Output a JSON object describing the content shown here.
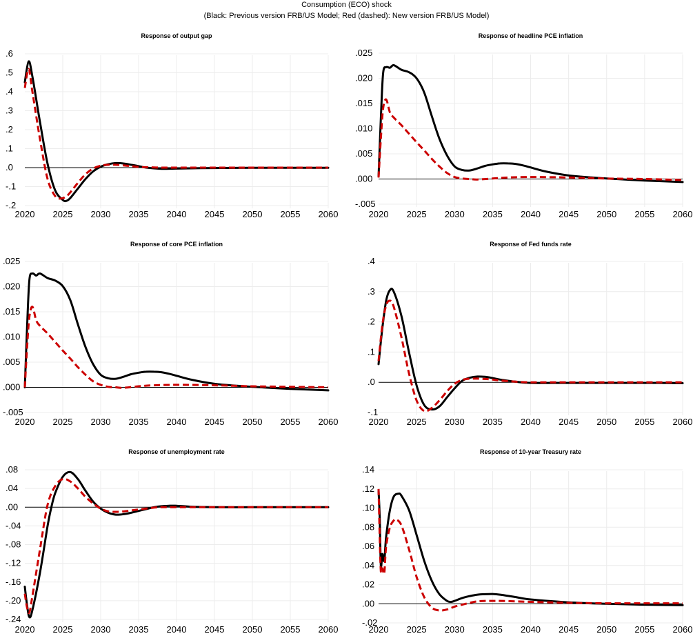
{
  "header": {
    "title": "Consumption (ECO) shock",
    "subtitle": "(Black: Previous version FRB/US Model; Red (dashed): New version FRB/US Model)"
  },
  "legend": {
    "previous": {
      "name": "Previous version FRB/US Model",
      "color": "#000000",
      "style": "solid"
    },
    "new": {
      "name": "New version FRB/US Model",
      "color": "#cc0000",
      "style": "dashed"
    }
  },
  "chart_data": [
    {
      "type": "line",
      "title": "Response of output gap",
      "xlabel": "",
      "ylabel": "",
      "xlim": [
        2020,
        2060
      ],
      "ylim": [
        -0.2,
        0.6
      ],
      "xticks": [
        2020,
        2025,
        2030,
        2035,
        2040,
        2045,
        2050,
        2055,
        2060
      ],
      "xtick_labels": [
        "2020",
        "2025",
        "2030",
        "2035",
        "2040",
        "2045",
        "2050",
        "2055",
        "2060"
      ],
      "yticks": [
        0.6,
        0.5,
        0.4,
        0.3,
        0.2,
        0.1,
        0.0,
        -0.1,
        -0.2
      ],
      "ytick_labels": [
        ".6",
        ".5",
        ".4",
        ".3",
        ".2",
        ".1",
        ".0",
        "-.1",
        "-.2"
      ],
      "grid": true,
      "series": [
        {
          "name": "Previous version FRB/US Model",
          "x": [
            2020,
            2020.5,
            2021,
            2022,
            2023,
            2024,
            2025,
            2025.5,
            2026,
            2027,
            2028,
            2029,
            2030,
            2031,
            2032,
            2033,
            2034,
            2035,
            2036,
            2038,
            2040,
            2045,
            2050,
            2055,
            2060
          ],
          "values": [
            0.45,
            0.56,
            0.48,
            0.24,
            0.02,
            -0.12,
            -0.17,
            -0.175,
            -0.16,
            -0.11,
            -0.06,
            -0.02,
            0.005,
            0.018,
            0.024,
            0.022,
            0.015,
            0.008,
            0.0,
            -0.006,
            -0.005,
            -0.002,
            -0.001,
            -0.001,
            -0.001
          ]
        },
        {
          "name": "New version FRB/US Model",
          "x": [
            2020,
            2020.5,
            2021,
            2022,
            2023,
            2024,
            2024.8,
            2025.5,
            2026,
            2027,
            2028,
            2029,
            2030,
            2031,
            2032,
            2033,
            2034,
            2035,
            2036,
            2038,
            2040,
            2045,
            2050,
            2055,
            2060
          ],
          "values": [
            0.42,
            0.52,
            0.4,
            0.15,
            -0.06,
            -0.15,
            -0.163,
            -0.15,
            -0.13,
            -0.08,
            -0.035,
            -0.005,
            0.01,
            0.015,
            0.015,
            0.012,
            0.008,
            0.004,
            0.002,
            0.0,
            0.0,
            0.0,
            0.0,
            0.0,
            0.0
          ]
        }
      ]
    },
    {
      "type": "line",
      "title": "Response of headline PCE inflation",
      "xlabel": "",
      "ylabel": "",
      "xlim": [
        2020,
        2060
      ],
      "ylim": [
        -0.005,
        0.025
      ],
      "xticks": [
        2020,
        2025,
        2030,
        2035,
        2040,
        2045,
        2050,
        2055,
        2060
      ],
      "xtick_labels": [
        "2020",
        "2025",
        "2030",
        "2035",
        "2040",
        "2045",
        "2050",
        "2055",
        "2060"
      ],
      "yticks": [
        0.025,
        0.02,
        0.015,
        0.01,
        0.005,
        0.0,
        -0.005
      ],
      "ytick_labels": [
        ".025",
        ".020",
        ".015",
        ".010",
        ".005",
        ".000",
        "-.005"
      ],
      "grid": true,
      "series": [
        {
          "name": "Previous version FRB/US Model",
          "x": [
            2020,
            2020.3,
            2020.6,
            2021,
            2021.5,
            2022,
            2023,
            2024,
            2025,
            2026,
            2027,
            2028,
            2029,
            2030,
            2031,
            2032,
            2033,
            2034,
            2035,
            2036,
            2037,
            2038,
            2039,
            2040,
            2042,
            2045,
            2048,
            2050,
            2055,
            2060
          ],
          "values": [
            0.0005,
            0.012,
            0.021,
            0.0222,
            0.0221,
            0.0226,
            0.0217,
            0.0212,
            0.02,
            0.0172,
            0.0125,
            0.008,
            0.0047,
            0.0025,
            0.0018,
            0.0017,
            0.0021,
            0.0026,
            0.0029,
            0.0031,
            0.0031,
            0.003,
            0.0027,
            0.0023,
            0.0015,
            0.0007,
            0.0003,
            0.0001,
            -0.0003,
            -0.0006
          ]
        },
        {
          "name": "New version FRB/US Model",
          "x": [
            2020,
            2020.3,
            2020.6,
            2021,
            2021.5,
            2022,
            2023,
            2024,
            2025,
            2026,
            2027,
            2028,
            2029,
            2030,
            2031,
            2032,
            2033,
            2035,
            2037,
            2040,
            2045,
            2050,
            2055,
            2060
          ],
          "values": [
            0.0003,
            0.008,
            0.014,
            0.0158,
            0.0132,
            0.0122,
            0.0107,
            0.009,
            0.0073,
            0.0057,
            0.004,
            0.0025,
            0.0012,
            0.0004,
            0.0001,
            0.0,
            -0.0001,
            0.0001,
            0.0003,
            0.0004,
            0.0003,
            0.0001,
            0.0,
            -0.0002
          ]
        }
      ]
    },
    {
      "type": "line",
      "title": "Response of core PCE inflation",
      "xlabel": "",
      "ylabel": "",
      "xlim": [
        2020,
        2060
      ],
      "ylim": [
        -0.005,
        0.025
      ],
      "xticks": [
        2020,
        2025,
        2030,
        2035,
        2040,
        2045,
        2050,
        2055,
        2060
      ],
      "xtick_labels": [
        "2020",
        "2025",
        "2030",
        "2035",
        "2040",
        "2045",
        "2050",
        "2055",
        "2060"
      ],
      "yticks": [
        0.025,
        0.02,
        0.015,
        0.01,
        0.005,
        0.0,
        -0.005
      ],
      "ytick_labels": [
        ".025",
        ".020",
        ".015",
        ".010",
        ".005",
        ".000",
        "-.005"
      ],
      "grid": true,
      "series": [
        {
          "name": "Previous version FRB/US Model",
          "x": [
            2020,
            2020.3,
            2020.6,
            2021,
            2021.5,
            2022,
            2023,
            2024,
            2025,
            2026,
            2027,
            2028,
            2029,
            2030,
            2031,
            2032,
            2033,
            2034,
            2035,
            2036,
            2037,
            2038,
            2039,
            2040,
            2042,
            2045,
            2048,
            2050,
            2055,
            2060
          ],
          "values": [
            0.0,
            0.012,
            0.0213,
            0.0226,
            0.0222,
            0.0226,
            0.0217,
            0.0212,
            0.0201,
            0.0173,
            0.0125,
            0.008,
            0.0046,
            0.0025,
            0.0018,
            0.0017,
            0.0021,
            0.0026,
            0.0029,
            0.0031,
            0.0031,
            0.003,
            0.0027,
            0.0023,
            0.0015,
            0.0007,
            0.0003,
            0.0001,
            -0.0003,
            -0.0006
          ]
        },
        {
          "name": "New version FRB/US Model",
          "x": [
            2020,
            2020.3,
            2020.6,
            2021,
            2021.5,
            2022,
            2023,
            2024,
            2025,
            2026,
            2027,
            2028,
            2029,
            2030,
            2031,
            2032,
            2033,
            2035,
            2037,
            2040,
            2045,
            2050,
            2055,
            2060
          ],
          "values": [
            0.0,
            0.008,
            0.014,
            0.016,
            0.0133,
            0.0122,
            0.0107,
            0.009,
            0.0073,
            0.0057,
            0.004,
            0.0025,
            0.0012,
            0.0005,
            0.0001,
            0.0,
            -0.0001,
            0.0002,
            0.0004,
            0.0005,
            0.0004,
            0.0002,
            0.0001,
            0.0
          ]
        }
      ]
    },
    {
      "type": "line",
      "title": "Response of Fed funds rate",
      "xlabel": "",
      "ylabel": "",
      "xlim": [
        2020,
        2060
      ],
      "ylim": [
        -0.1,
        0.4
      ],
      "xticks": [
        2020,
        2025,
        2030,
        2035,
        2040,
        2045,
        2050,
        2055,
        2060
      ],
      "xtick_labels": [
        "2020",
        "2025",
        "2030",
        "2035",
        "2040",
        "2045",
        "2050",
        "2055",
        "2060"
      ],
      "yticks": [
        0.4,
        0.3,
        0.2,
        0.1,
        0.0,
        -0.1
      ],
      "ytick_labels": [
        ".4",
        ".3",
        ".2",
        ".1",
        ".0",
        "-.1"
      ],
      "grid": true,
      "series": [
        {
          "name": "Previous version FRB/US Model",
          "x": [
            2020,
            2020.5,
            2021,
            2021.5,
            2022,
            2023,
            2024,
            2025,
            2026,
            2027,
            2028,
            2029,
            2030,
            2031,
            2032,
            2033,
            2034,
            2035,
            2036,
            2038,
            2040,
            2045,
            2050,
            2055,
            2060
          ],
          "values": [
            0.06,
            0.18,
            0.27,
            0.305,
            0.3,
            0.22,
            0.1,
            -0.01,
            -0.075,
            -0.09,
            -0.08,
            -0.05,
            -0.02,
            0.005,
            0.015,
            0.019,
            0.018,
            0.014,
            0.009,
            0.002,
            -0.002,
            -0.002,
            -0.002,
            -0.002,
            -0.003
          ]
        },
        {
          "name": "New version FRB/US Model",
          "x": [
            2020,
            2020.5,
            2021,
            2021.5,
            2022,
            2023,
            2024,
            2025,
            2026,
            2027,
            2028,
            2029,
            2030,
            2031,
            2032,
            2033,
            2034,
            2035,
            2036,
            2038,
            2040,
            2045,
            2050,
            2055,
            2060
          ],
          "values": [
            0.07,
            0.19,
            0.255,
            0.27,
            0.25,
            0.15,
            0.03,
            -0.06,
            -0.095,
            -0.085,
            -0.06,
            -0.03,
            -0.005,
            0.008,
            0.012,
            0.012,
            0.011,
            0.009,
            0.006,
            0.002,
            0.0,
            0.0,
            0.0,
            0.0,
            0.0
          ]
        }
      ]
    },
    {
      "type": "line",
      "title": "Response of unemployment rate",
      "xlabel": "",
      "ylabel": "",
      "xlim": [
        2020,
        2060
      ],
      "ylim": [
        -0.24,
        0.08
      ],
      "xticks": [
        2020,
        2025,
        2030,
        2035,
        2040,
        2045,
        2050,
        2055,
        2060
      ],
      "xtick_labels": [
        "2020",
        "2025",
        "2030",
        "2035",
        "2040",
        "2045",
        "2050",
        "2055",
        "2060"
      ],
      "yticks": [
        0.08,
        0.04,
        0.0,
        -0.04,
        -0.08,
        -0.12,
        -0.16,
        -0.2,
        -0.24
      ],
      "ytick_labels": [
        ".08",
        ".04",
        ".00",
        "-.04",
        "-.08",
        "-.12",
        "-.16",
        "-.20",
        "-.24"
      ],
      "grid": true,
      "series": [
        {
          "name": "Previous version FRB/US Model",
          "x": [
            2020,
            2020.3,
            2020.6,
            2021,
            2022,
            2023,
            2023.5,
            2024,
            2025,
            2026,
            2027,
            2028,
            2029,
            2030,
            2031,
            2032,
            2033,
            2034,
            2035,
            2036,
            2037,
            2038,
            2039,
            2040,
            2042,
            2045,
            2050,
            2055,
            2060
          ],
          "values": [
            -0.17,
            -0.21,
            -0.235,
            -0.22,
            -0.14,
            -0.04,
            0.0,
            0.03,
            0.065,
            0.075,
            0.06,
            0.035,
            0.012,
            -0.003,
            -0.012,
            -0.016,
            -0.015,
            -0.012,
            -0.008,
            -0.004,
            0.0,
            0.002,
            0.003,
            0.003,
            0.001,
            0.0,
            0.0,
            0.0,
            0.0
          ]
        },
        {
          "name": "New version FRB/US Model",
          "x": [
            2020,
            2020.3,
            2020.6,
            2021,
            2022,
            2023,
            2024,
            2025,
            2026,
            2027,
            2028,
            2029,
            2030,
            2031,
            2032,
            2033,
            2034,
            2035,
            2036,
            2037,
            2038,
            2040,
            2045,
            2050,
            2055,
            2060
          ],
          "values": [
            -0.185,
            -0.215,
            -0.225,
            -0.19,
            -0.09,
            0.005,
            0.045,
            0.06,
            0.055,
            0.04,
            0.022,
            0.008,
            -0.003,
            -0.009,
            -0.01,
            -0.009,
            -0.007,
            -0.005,
            -0.003,
            -0.001,
            0.0,
            0.0,
            0.0,
            0.0,
            0.0,
            0.0
          ]
        }
      ]
    },
    {
      "type": "line",
      "title": "Response of 10-year Treasury rate",
      "xlabel": "",
      "ylabel": "",
      "xlim": [
        2020,
        2060
      ],
      "ylim": [
        -0.02,
        0.14
      ],
      "xticks": [
        2020,
        2025,
        2030,
        2035,
        2040,
        2045,
        2050,
        2055,
        2060
      ],
      "xtick_labels": [
        "2020",
        "2025",
        "2030",
        "2035",
        "2040",
        "2045",
        "2050",
        "2055",
        "2060"
      ],
      "yticks": [
        0.14,
        0.12,
        0.1,
        0.08,
        0.06,
        0.04,
        0.02,
        0.0,
        -0.02
      ],
      "ytick_labels": [
        ".14",
        ".12",
        ".10",
        ".08",
        ".06",
        ".04",
        ".02",
        ".00",
        "-.02"
      ],
      "grid": true,
      "series": [
        {
          "name": "Previous version FRB/US Model",
          "x": [
            2020,
            2020.15,
            2020.3,
            2020.5,
            2020.75,
            2021,
            2021.5,
            2022,
            2022.6,
            2023,
            2024,
            2025,
            2026,
            2027,
            2028,
            2029,
            2029.5,
            2030,
            2031,
            2032,
            2033,
            2034,
            2035,
            2036,
            2038,
            2040,
            2045,
            2050,
            2055,
            2060
          ],
          "values": [
            0.118,
            0.09,
            0.04,
            0.052,
            0.045,
            0.07,
            0.098,
            0.112,
            0.115,
            0.113,
            0.098,
            0.072,
            0.045,
            0.024,
            0.01,
            0.003,
            0.002,
            0.003,
            0.006,
            0.008,
            0.0095,
            0.01,
            0.0102,
            0.0095,
            0.007,
            0.0045,
            0.0015,
            0.0,
            -0.001,
            -0.0015
          ]
        },
        {
          "name": "New version FRB/US Model",
          "x": [
            2020,
            2020.15,
            2020.3,
            2020.5,
            2020.75,
            2021,
            2021.5,
            2022,
            2022.3,
            2023,
            2024,
            2025,
            2026,
            2027,
            2028,
            2029,
            2030,
            2031,
            2032,
            2033,
            2034,
            2035,
            2036,
            2038,
            2040,
            2045,
            2050,
            2055,
            2060
          ],
          "values": [
            0.12,
            0.07,
            0.034,
            0.037,
            0.032,
            0.06,
            0.08,
            0.087,
            0.088,
            0.082,
            0.057,
            0.028,
            0.007,
            -0.004,
            -0.007,
            -0.006,
            -0.003,
            -0.001,
            0.001,
            0.0025,
            0.003,
            0.003,
            0.003,
            0.0025,
            0.002,
            0.001,
            0.0005,
            0.0005,
            0.0005
          ]
        }
      ]
    }
  ]
}
